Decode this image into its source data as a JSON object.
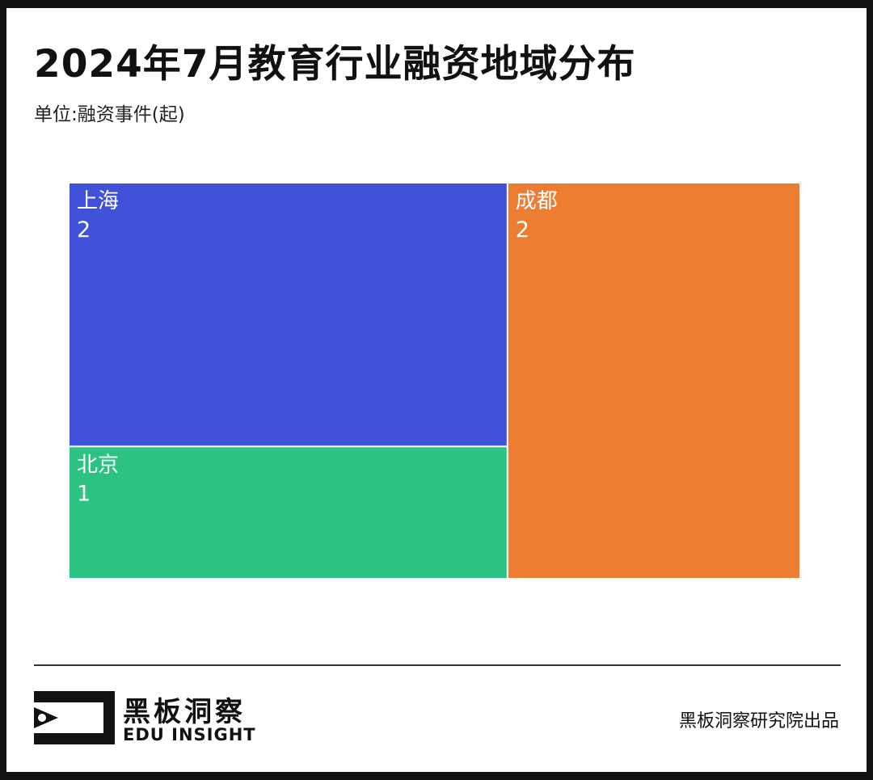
{
  "header": {
    "title": "2024年7月教育行业融资地域分布",
    "unit": "单位:融资事件(起)"
  },
  "chart_data": {
    "type": "treemap",
    "title": "2024年7月教育行业融资地域分布",
    "unit": "单位:融资事件(起)",
    "items": [
      {
        "name": "上海",
        "value": 2,
        "color": "#3F52D9"
      },
      {
        "name": "北京",
        "value": 1,
        "color": "#2BC282"
      },
      {
        "name": "成都",
        "value": 2,
        "color": "#ED7D31"
      }
    ]
  },
  "footer": {
    "brand_cn": "黑板洞察",
    "brand_en": "EDU INSIGHT",
    "credit": "黑板洞察研究院出品"
  }
}
